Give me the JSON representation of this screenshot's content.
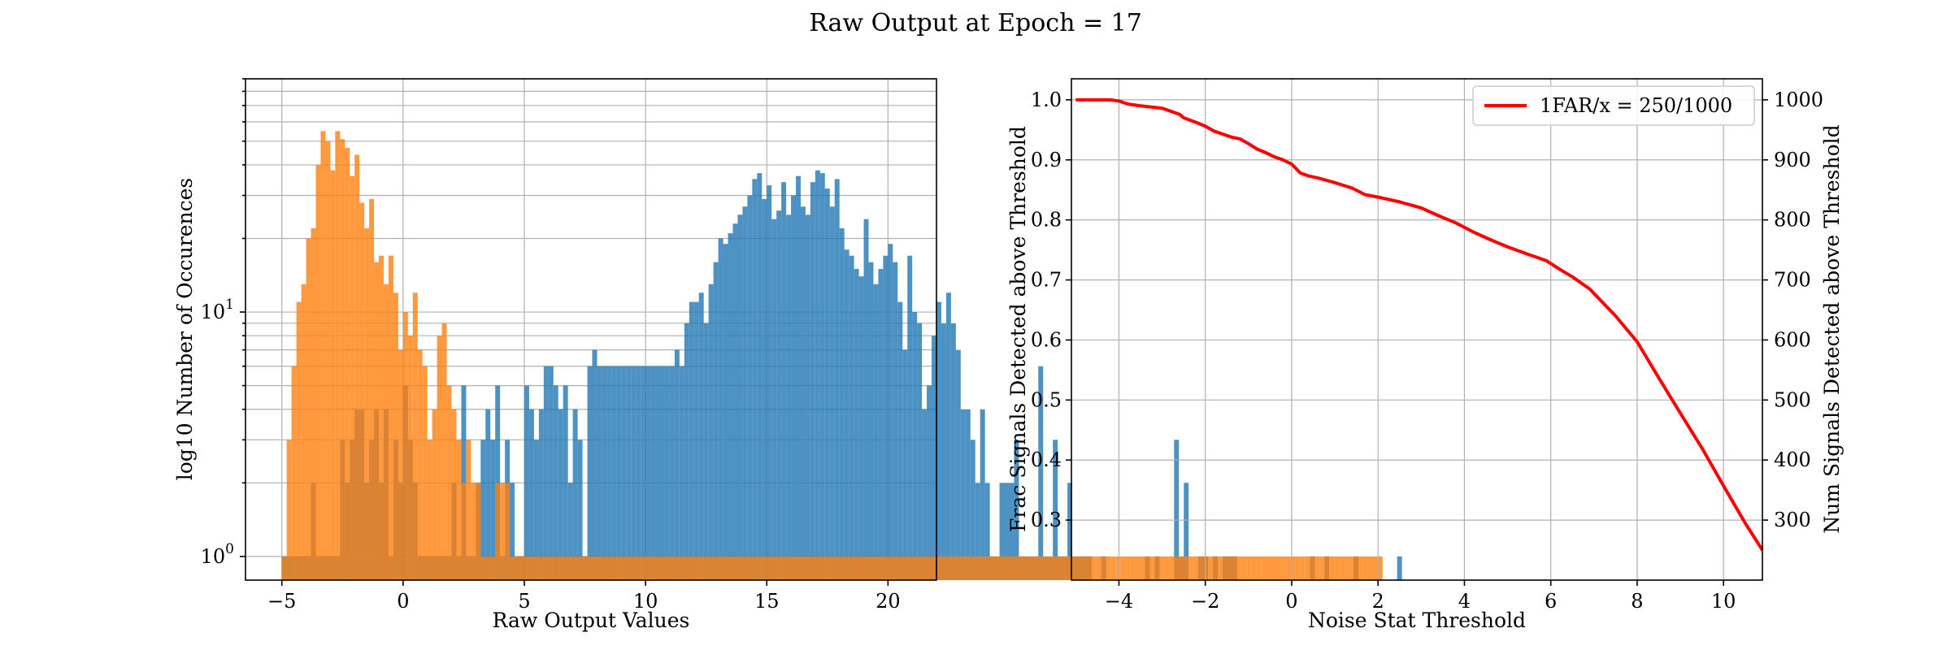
{
  "figure": {
    "title": "Raw Output at Epoch = 17"
  },
  "chart_data": [
    {
      "type": "histogram",
      "xlabel": "Raw Output Values",
      "ylabel": "log10 Number of Occurences",
      "xlim": [
        -6.5,
        22
      ],
      "ylim": [
        0.8,
        90
      ],
      "yscale": "log",
      "grid": true,
      "xticks": [
        -5,
        0,
        5,
        10,
        15,
        20
      ],
      "yticks": [
        {
          "value": 1,
          "base": "10",
          "exp": "0"
        },
        {
          "value": 10,
          "base": "10",
          "exp": "1"
        }
      ],
      "bins": {
        "start": -5.0,
        "width": 0.2
      },
      "series": [
        {
          "color": "#1f77b4",
          "opacity": 0.8,
          "counts": [
            1,
            1,
            1,
            1,
            1,
            1,
            2,
            1,
            1,
            1,
            1,
            1,
            3,
            2,
            3,
            4,
            4,
            2,
            3,
            4,
            2,
            4,
            1,
            3,
            2,
            5,
            3,
            2,
            1,
            1,
            1,
            1,
            1,
            1,
            1,
            2,
            1,
            5,
            1,
            1,
            2,
            3,
            4,
            3,
            5,
            1,
            3,
            2,
            1,
            1,
            5,
            4,
            3,
            4,
            6,
            6,
            5,
            4,
            5,
            2,
            4,
            3,
            1,
            6,
            7,
            6,
            6,
            6,
            6,
            6,
            6,
            6,
            6,
            6,
            6,
            6,
            6,
            6,
            6,
            6,
            6,
            7,
            6,
            9,
            11,
            11,
            12,
            9,
            13,
            16,
            20,
            19,
            21,
            23,
            25,
            27,
            30,
            35,
            37,
            29,
            33,
            24,
            26,
            34,
            25,
            30,
            36,
            27,
            25,
            34,
            38,
            37,
            32,
            27,
            35,
            22,
            18,
            17,
            15,
            14,
            24,
            16,
            13,
            15,
            17,
            19,
            16,
            11,
            7,
            17,
            10,
            9,
            4,
            5,
            8,
            11,
            9,
            12,
            9,
            7,
            4,
            4,
            3,
            2,
            4,
            2,
            1,
            1,
            2,
            2,
            2,
            3,
            1,
            1,
            1,
            1,
            6,
            1,
            1,
            3,
            1,
            1,
            2,
            1,
            1,
            1,
            1,
            0,
            0,
            1,
            0,
            0,
            0,
            0,
            0,
            0,
            0,
            0,
            1,
            0,
            1,
            0,
            0,
            0,
            3,
            1,
            2,
            0,
            0,
            1,
            1,
            0,
            1,
            0,
            1,
            1,
            1,
            0,
            0,
            0,
            0,
            0,
            0,
            0,
            0,
            0,
            0,
            0,
            0,
            0,
            0,
            0,
            1,
            0,
            0,
            1,
            0,
            0,
            0,
            0,
            0,
            1,
            0,
            0,
            0,
            0,
            0,
            0,
            0,
            0,
            1
          ]
        },
        {
          "color": "#ff7f0e",
          "opacity": 0.8,
          "counts": [
            1,
            3,
            6,
            11,
            13,
            20,
            22,
            40,
            55,
            50,
            38,
            55,
            51,
            47,
            36,
            44,
            28,
            22,
            29,
            16,
            17,
            13,
            17,
            12,
            7,
            10,
            8,
            12,
            7,
            6,
            3,
            4,
            8,
            9,
            5,
            4,
            3,
            2,
            3,
            2,
            2,
            1,
            1,
            1,
            2,
            2,
            2,
            1,
            1,
            1,
            1,
            1,
            1,
            1,
            1,
            1,
            1,
            1,
            1,
            1,
            1,
            1,
            1,
            1,
            1,
            1,
            1,
            1,
            1,
            1,
            1,
            1,
            1,
            1,
            1,
            1,
            1,
            1,
            1,
            1,
            1,
            1,
            1,
            1,
            1,
            1,
            1,
            1,
            1,
            1,
            1,
            1,
            1,
            1,
            1,
            1,
            1,
            1,
            1,
            1,
            1,
            1,
            1,
            1,
            1,
            1,
            1,
            1,
            1,
            1,
            1,
            1,
            1,
            1,
            1,
            1,
            1,
            1,
            1,
            1,
            1,
            1,
            1,
            1,
            1,
            1,
            1,
            1,
            1,
            1,
            1,
            1,
            1,
            1,
            1,
            1,
            1,
            1,
            1,
            1,
            1,
            1,
            1,
            1,
            1,
            1,
            1,
            1,
            1,
            1,
            1,
            1,
            1,
            1,
            1,
            1,
            1,
            1,
            1,
            1,
            1,
            1,
            1,
            1,
            1,
            1,
            1,
            1,
            1,
            1,
            1,
            1,
            1,
            1,
            1,
            1,
            1,
            1,
            1,
            1,
            1,
            1,
            1,
            1,
            1,
            1,
            1,
            1,
            1,
            1,
            1,
            1,
            1,
            1,
            1,
            1,
            1,
            1,
            1,
            1,
            1,
            1,
            1,
            1,
            1,
            1,
            1,
            1,
            1,
            1,
            1,
            1,
            1,
            1,
            1,
            1,
            1,
            1,
            1,
            1,
            1,
            1,
            1,
            1,
            1,
            1,
            1
          ]
        }
      ]
    },
    {
      "type": "line",
      "xlabel": "Noise Stat Threshold",
      "ylabel": "Frac Signals Detected above Threshold",
      "y2label": "Num Signals Detected above Threshold",
      "xlim": [
        -5.1,
        10.9
      ],
      "ylim": [
        0.2,
        1.035
      ],
      "y2lim": [
        200,
        1035
      ],
      "grid": true,
      "xticks": [
        -4,
        -2,
        0,
        2,
        4,
        6,
        8,
        10
      ],
      "yticks": [
        0.3,
        0.4,
        0.5,
        0.6,
        0.7,
        0.8,
        0.9,
        1.0
      ],
      "y2ticks": [
        300,
        400,
        500,
        600,
        700,
        800,
        900,
        1000
      ],
      "legend_position": "top-right",
      "series": [
        {
          "name": "1FAR/x = 250/1000",
          "color": "#ff0000",
          "x": [
            -5.0,
            -4.2,
            -4.0,
            -3.8,
            -3.5,
            -3.0,
            -2.6,
            -2.5,
            -2.2,
            -2.0,
            -1.8,
            -1.6,
            -1.4,
            -1.2,
            -1.0,
            -0.8,
            -0.6,
            -0.4,
            -0.2,
            0.0,
            0.2,
            0.4,
            0.6,
            1.0,
            1.4,
            1.7,
            2.0,
            2.5,
            3.0,
            3.4,
            3.8,
            4.2,
            4.6,
            5.0,
            5.5,
            5.9,
            6.2,
            6.5,
            6.9,
            7.5,
            8.0,
            8.5,
            9.0,
            9.5,
            10.0,
            10.5,
            10.9
          ],
          "y": [
            1.0,
            1.0,
            0.998,
            0.993,
            0.99,
            0.986,
            0.976,
            0.97,
            0.962,
            0.956,
            0.948,
            0.943,
            0.938,
            0.935,
            0.927,
            0.918,
            0.912,
            0.905,
            0.9,
            0.893,
            0.878,
            0.873,
            0.87,
            0.862,
            0.853,
            0.842,
            0.838,
            0.83,
            0.82,
            0.807,
            0.795,
            0.78,
            0.767,
            0.755,
            0.742,
            0.732,
            0.718,
            0.705,
            0.685,
            0.64,
            0.597,
            0.537,
            0.478,
            0.42,
            0.357,
            0.295,
            0.25
          ]
        }
      ]
    }
  ]
}
